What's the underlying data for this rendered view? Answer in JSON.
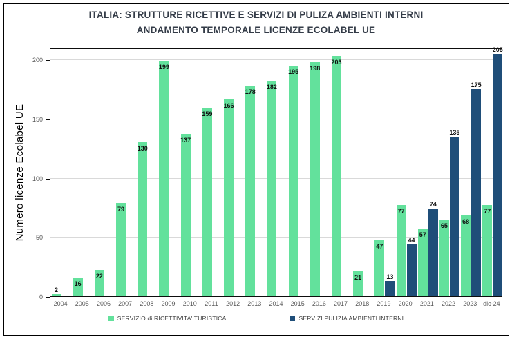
{
  "title": {
    "line1": "ITALIA:  STRUTTURE RICETTIVE E SERVIZI DI PULIZA AMBIENTI INTERNI",
    "line2": "ANDAMENTO TEMPORALE LICENZE ECOLABEL UE"
  },
  "chart_data": {
    "type": "bar",
    "title": "ITALIA: STRUTTURE RICETTIVE E SERVIZI DI PULIZA AMBIENTI INTERNI - ANDAMENTO TEMPORALE LICENZE ECOLABEL UE",
    "xlabel": "",
    "ylabel": "Numero licenze Ecolabel UE",
    "categories": [
      "2004",
      "2005",
      "2006",
      "2007",
      "2008",
      "2009",
      "2010",
      "2011",
      "2012",
      "2013",
      "2014",
      "2015",
      "2016",
      "2017",
      "2018",
      "2019",
      "2020",
      "2021",
      "2022",
      "2023",
      "dic-24"
    ],
    "series": [
      {
        "name": "SERVIZIO di RICETTIVITA' TURISTICA",
        "color": "#63E19C",
        "values": [
          2,
          16,
          22,
          79,
          130,
          199,
          137,
          159,
          166,
          178,
          182,
          195,
          198,
          203,
          21,
          47,
          77,
          57,
          65,
          68,
          77
        ]
      },
      {
        "name": "SERVIZI PULIZIA AMBIENTI INTERNI",
        "color": "#1F4E79",
        "values": [
          null,
          null,
          null,
          null,
          null,
          null,
          null,
          null,
          null,
          null,
          null,
          null,
          null,
          null,
          null,
          13,
          44,
          74,
          135,
          175,
          205
        ]
      }
    ],
    "ylim": [
      0,
      210
    ],
    "yticks": [
      0,
      50,
      100,
      150,
      200
    ],
    "grid": true,
    "legend_position": "bottom",
    "data_labels": true
  },
  "colors": {
    "series_green": "#63E19C",
    "series_blue": "#1F4E79",
    "gridline": "#D9D9D9",
    "axis_line": "#0D0D0D",
    "title_text": "#333B47",
    "tick_text": "#595959",
    "frame_border": "#000000"
  }
}
